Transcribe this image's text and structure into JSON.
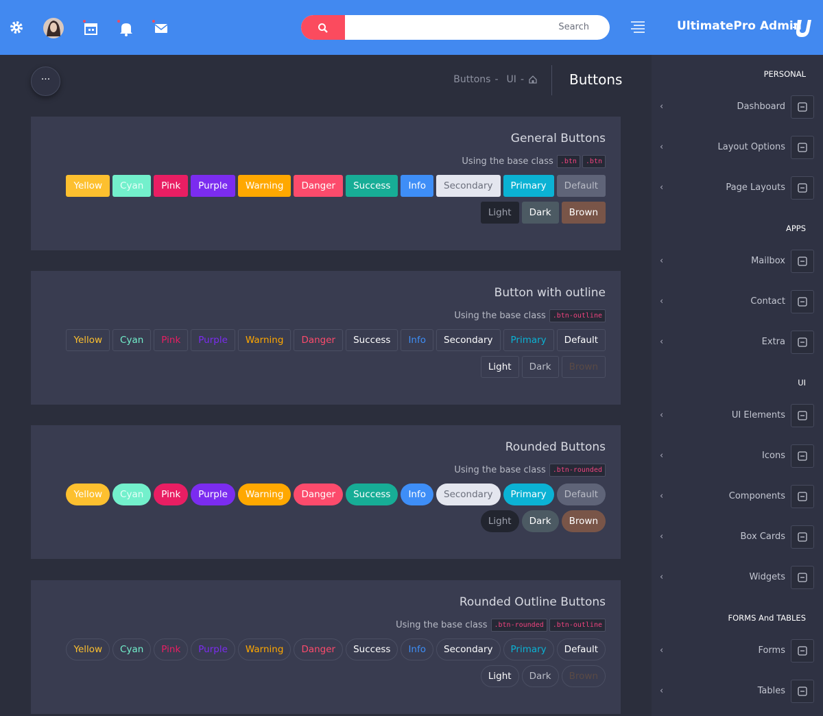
{
  "header": {
    "search_placeholder": "Search",
    "brand": "UltimatePro Admin"
  },
  "breadcrumb": {
    "items": [
      "Buttons",
      "UI"
    ],
    "separator": "-",
    "title": "Buttons"
  },
  "button_labels": [
    "Yellow",
    "Cyan",
    "Pink",
    "Purple",
    "Warning",
    "Danger",
    "Success",
    "Info",
    "Secondary",
    "Primary",
    "Default",
    "Light",
    "Dark",
    "Brown"
  ],
  "sections": [
    {
      "title": "General Buttons",
      "subtitle": "Using the base class",
      "codes": [
        ".btn",
        ".btn"
      ]
    },
    {
      "title": "Button with outline",
      "subtitle": "Using the base class",
      "codes": [
        ".btn-outline"
      ]
    },
    {
      "title": "Rounded Buttons",
      "subtitle": "Using the base class",
      "codes": [
        ".btn-rounded"
      ]
    },
    {
      "title": "Rounded Outline Buttons",
      "subtitle": "Using the base class",
      "codes": [
        ".btn-rounded",
        ".btn-outline"
      ]
    }
  ],
  "sidebar": [
    {
      "heading": "PERSONAL",
      "items": [
        "Dashboard",
        "Layout Options",
        "Page Layouts"
      ]
    },
    {
      "heading": "APPS",
      "items": [
        "Mailbox",
        "Contact",
        "Extra"
      ]
    },
    {
      "heading": "UI",
      "items": [
        "UI Elements",
        "Icons",
        "Components",
        "Box Cards",
        "Widgets"
      ]
    },
    {
      "heading": "FORMS And TABLES",
      "items": [
        "Forms",
        "Tables"
      ]
    }
  ]
}
